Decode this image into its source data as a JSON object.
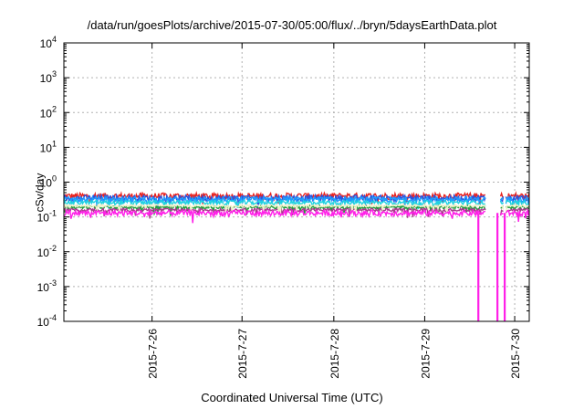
{
  "chart_data": {
    "type": "line",
    "title": "/data/run/goesPlots/archive/2015-07-30/05:00/flux/../bryn/5daysEarthData.plot",
    "xlabel": "Coordinated Universal Time (UTC)",
    "ylabel": "cSv/day",
    "yscale": "log",
    "ylim_exponents": [
      -4,
      4
    ],
    "y_tick_labels": [
      {
        "base": "10",
        "exp": "-4"
      },
      {
        "base": "10",
        "exp": "-3"
      },
      {
        "base": "10",
        "exp": "-2"
      },
      {
        "base": "10",
        "exp": "-1"
      },
      {
        "base": "10",
        "exp": "0"
      },
      {
        "base": "10",
        "exp": "1"
      },
      {
        "base": "10",
        "exp": "2"
      },
      {
        "base": "10",
        "exp": "3"
      },
      {
        "base": "10",
        "exp": "4"
      }
    ],
    "xlim_days": [
      0,
      5.12
    ],
    "x_ticks": [
      {
        "label": "2015-7-26",
        "day": 0.97
      },
      {
        "label": "2015-7-27",
        "day": 1.96
      },
      {
        "label": "2015-7-28",
        "day": 2.97
      },
      {
        "label": "2015-7-29",
        "day": 3.97
      },
      {
        "label": "2015-7-30",
        "day": 4.96
      }
    ],
    "grid": true,
    "data_gaps_days": [
      [
        4.64,
        4.8
      ],
      [
        4.84,
        4.86
      ]
    ],
    "series": [
      {
        "color": "#e8221f",
        "level": 0.4,
        "spread": 0.22
      },
      {
        "color": "#2a52e0",
        "level": 0.35,
        "spread": 0.2
      },
      {
        "color": "#1e9bff",
        "level": 0.32,
        "spread": 0.18
      },
      {
        "color": "#1fd2e0",
        "level": 0.26,
        "spread": 0.14
      },
      {
        "color": "#1e9e3a",
        "level": 0.19,
        "spread": 0.1
      },
      {
        "color": "#a83a8c",
        "level": 0.16,
        "spread": 0.1
      },
      {
        "color": "#f0f0c8",
        "level": 0.21,
        "spread": 0.08
      },
      {
        "color": "#ff1fe8",
        "level": 0.13,
        "spread": 0.18
      }
    ]
  }
}
